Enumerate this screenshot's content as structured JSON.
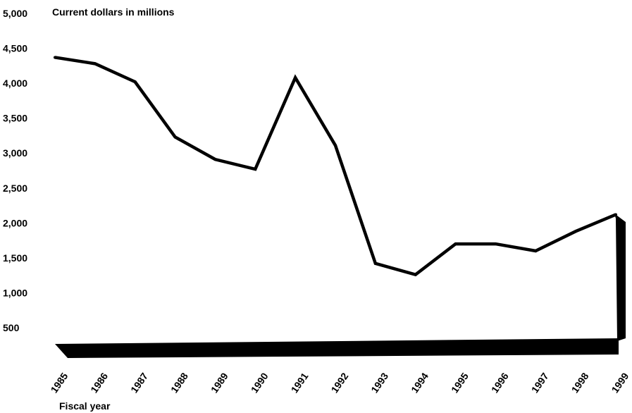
{
  "chart_data": {
    "type": "line",
    "ylabel": "Current dollars in millions",
    "xlabel": "Fiscal year",
    "ylim": [
      0,
      5000
    ],
    "yticks": [
      500,
      1000,
      1500,
      2000,
      2500,
      3000,
      3500,
      4000,
      4500,
      5000
    ],
    "ytick_labels": [
      "500",
      "1,000",
      "1,500",
      "2,000",
      "2,500",
      "3,000",
      "3,500",
      "4,000",
      "4,500",
      "5,000"
    ],
    "categories": [
      "1985",
      "1986",
      "1987",
      "1988",
      "1989",
      "1990",
      "1991",
      "1992",
      "1993",
      "1994",
      "1995",
      "1996",
      "1997",
      "1998",
      "1999"
    ],
    "series": [
      {
        "values": [
          4370,
          4280,
          4020,
          3230,
          2910,
          2770,
          4080,
          3110,
          1420,
          1260,
          1700,
          1700,
          1600,
          1880,
          2120
        ]
      }
    ],
    "grid": false,
    "line_color": "#000000"
  }
}
